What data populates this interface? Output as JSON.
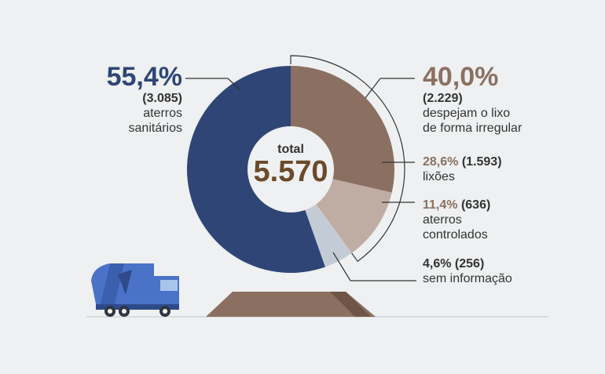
{
  "chart_data": {
    "type": "pie",
    "total_label": "total",
    "total_value": "5.570",
    "slices": [
      {
        "key": "aterros_sanitarios",
        "percent": 55.4,
        "percent_label": "55,4%",
        "count_label": "(3.085)",
        "label": "aterros sanitários",
        "color": "#2e4576"
      },
      {
        "key": "lixoes",
        "percent": 28.6,
        "percent_label": "28,6%",
        "count_label": "(1.593)",
        "label": "lixões",
        "color": "#8b7061"
      },
      {
        "key": "aterros_controlados",
        "percent": 11.4,
        "percent_label": "11,4%",
        "count_label": "(636)",
        "label": "aterros controlados",
        "color": "#bfaca3"
      },
      {
        "key": "sem_informacao",
        "percent": 4.6,
        "percent_label": "4,6%",
        "count_label": "(256)",
        "label": "sem informação",
        "color": "#c3cbd6"
      }
    ],
    "group": {
      "percent_label": "40,0%",
      "count_label": "(2.229)",
      "label_line1": "despejam o lixo",
      "label_line2": "de forma irregular",
      "color": "#8b7061"
    }
  },
  "labels": {
    "sanitarios_line1": "aterros",
    "sanitarios_line2": "sanitários",
    "controlados_line1": "aterros",
    "controlados_line2": "controlados"
  },
  "colors": {
    "background": "#eef0f1",
    "truck_body": "#4a73c7",
    "truck_dark": "#2e4a8a",
    "mound": "#8b7061",
    "line": "#333333"
  }
}
